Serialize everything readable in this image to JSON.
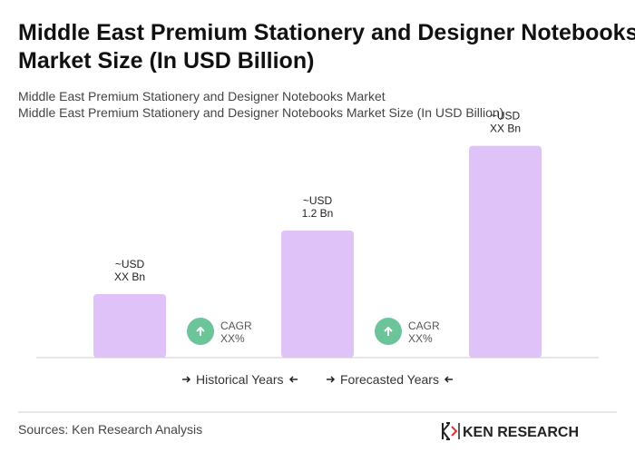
{
  "chart_data": {
    "type": "bar",
    "title": "Middle East Premium Stationery and Designer Notebooks Market Size (In USD Billion)",
    "subtitle": [
      "Middle East Premium Stationery and Designer Notebooks Market",
      "Middle East Premium Stationery and Designer Notebooks Market Size (In USD Billion)"
    ],
    "categories": [
      null,
      null,
      null
    ],
    "values": [
      0.6,
      1.2,
      2.0
    ],
    "value_labels": [
      [
        "~USD",
        "XX Bn"
      ],
      [
        "~USD",
        "1.2 Bn"
      ],
      [
        "~USD",
        "XX Bn"
      ]
    ],
    "color": "#dfc2f8",
    "annotations": [
      [
        "CAGR",
        "XX%"
      ],
      [
        "CAGR",
        "XX%"
      ]
    ],
    "periods": [
      "Historical Years",
      "Forecasted Years"
    ],
    "source": "Sources: Ken Research Analysis",
    "brand": "KEN RESEARCH"
  }
}
